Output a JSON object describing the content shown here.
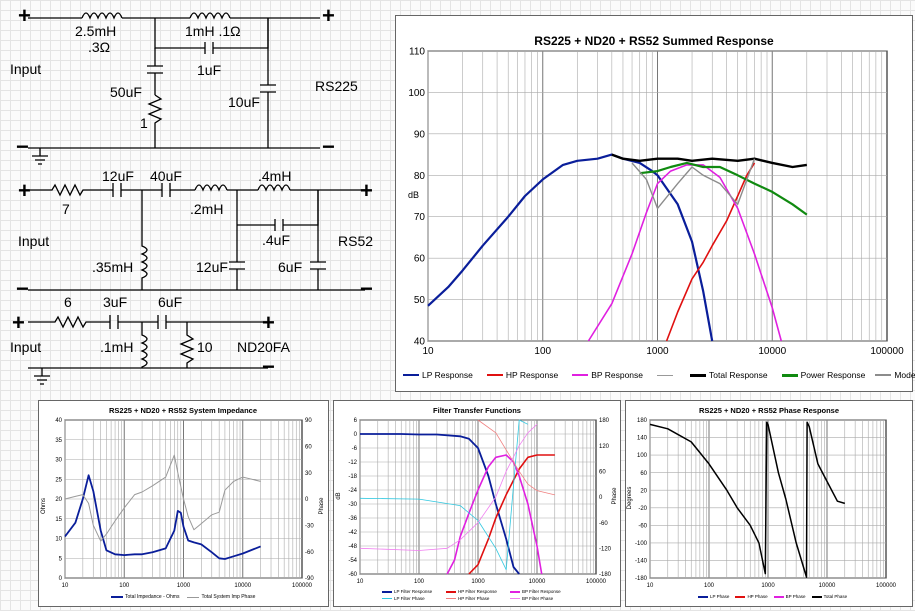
{
  "schematic": {
    "plus": "+",
    "minus": "−",
    "input_label": "Input",
    "rs225": {
      "name": "RS225",
      "l1_value": "2.5mH",
      "l1_res": ".3Ω",
      "l2_label": "1mH .1Ω",
      "c_bridge": "1uF",
      "c_shunt": "50uF",
      "r_shunt": "1",
      "c_out": "10uF"
    },
    "rs52": {
      "name": "RS52",
      "r_in": "7",
      "c1": "12uF",
      "c2": "40uF",
      "l1": ".35mH",
      "l2": ".2mH",
      "l3": ".4mH",
      "c_bridge": ".4uF",
      "c_shunt": "12uF",
      "c_out": "6uF"
    },
    "nd20": {
      "name": "ND20FA",
      "r_in": "6",
      "c1": "3uF",
      "c2": "6uF",
      "l1": ".1mH",
      "r_out": "10"
    }
  },
  "main_chart": {
    "title": "RS225 + ND20 + RS52  Summed Response",
    "ylabel": "dB",
    "y_ticks": [
      "110",
      "100",
      "90",
      "80",
      "70",
      "60",
      "50",
      "40"
    ],
    "x_ticks": [
      "10",
      "100",
      "1000",
      "10000",
      "100000"
    ],
    "legend": [
      "LP Response",
      "HP Response",
      "BP Response",
      "",
      "Total Response",
      "Power Response",
      "Modeled"
    ],
    "colors": {
      "lp": "#0a1e9a",
      "hp": "#e01010",
      "bp": "#e020e0",
      "total": "#000000",
      "power": "#108a10",
      "modeled": "#8c8c8c",
      "thin": "#909090"
    }
  },
  "impedance_chart": {
    "title": "RS225 + ND20 + RS52  System Impedance",
    "ylabel_left": "Ohms",
    "ylabel_right": "Phase",
    "y_left_ticks": [
      "40",
      "35",
      "30",
      "25",
      "20",
      "15",
      "10",
      "5",
      "0"
    ],
    "y_right_ticks": [
      "90",
      "60",
      "30",
      "0",
      "-30",
      "-60",
      "-90"
    ],
    "x_ticks": [
      "10",
      "100",
      "1000",
      "10000",
      "100000"
    ],
    "legend": [
      "Total Impedance - Ohms",
      "Total System Imp Phase"
    ]
  },
  "filter_chart": {
    "title": "Filter Transfer Functions",
    "ylabel_left": "dB",
    "ylabel_right": "Phase",
    "y_left_ticks": [
      "6",
      "0",
      "-6",
      "-12",
      "-18",
      "-24",
      "-30",
      "-36",
      "-42",
      "-48",
      "-54",
      "-60"
    ],
    "y_right_ticks": [
      "180",
      "120",
      "60",
      "0",
      "-60",
      "-120",
      "-180"
    ],
    "x_ticks": [
      "10",
      "100",
      "1000",
      "10000",
      "100000"
    ],
    "legend": [
      "LP Filter Response",
      "HP Filter Response",
      "BP Filter Response",
      "LP Filter Phase",
      "HP Filter Phase",
      "BP Filter Phase"
    ]
  },
  "phase_chart": {
    "title": "RS225 + ND20 + RS52  Phase Response",
    "ylabel": "Degrees",
    "y_ticks": [
      "180",
      "140",
      "100",
      "60",
      "20",
      "-20",
      "-60",
      "-100",
      "-140",
      "-180"
    ],
    "x_ticks": [
      "10",
      "100",
      "1000",
      "10000",
      "100000"
    ],
    "legend": [
      "LP Phase",
      "HP Phase",
      "BP Phase",
      "Total Phase"
    ]
  },
  "chart_data": [
    {
      "type": "line",
      "title": "RS225 + ND20 + RS52  Summed Response",
      "xlabel": "",
      "ylabel": "dB",
      "xscale": "log",
      "xlim": [
        10,
        100000
      ],
      "ylim": [
        40,
        110
      ],
      "series": [
        {
          "name": "LP Response",
          "x": [
            10,
            15,
            20,
            30,
            50,
            70,
            100,
            150,
            200,
            300,
            400,
            500,
            700,
            900,
            1000,
            1500,
            2000,
            2500,
            3000
          ],
          "y": [
            48.5,
            53,
            57,
            63,
            70,
            75,
            79,
            82.5,
            83.5,
            84,
            85,
            84,
            83,
            81,
            80,
            73,
            64,
            52,
            40
          ]
        },
        {
          "name": "HP Response",
          "x": [
            1200,
            1500,
            2000,
            2500,
            3000,
            4000,
            5000,
            6000,
            7000
          ],
          "y": [
            40,
            47,
            55,
            59,
            63,
            69,
            75,
            80,
            83
          ]
        },
        {
          "name": "BP Response",
          "x": [
            250,
            400,
            600,
            800,
            1000,
            1300,
            1800,
            2500,
            3500,
            5000,
            7000,
            10000,
            12000
          ],
          "y": [
            40,
            49,
            61,
            71,
            78,
            81,
            82.5,
            82.5,
            79.5,
            72,
            61,
            48,
            40
          ]
        },
        {
          "name": "Total Response",
          "x": [
            400,
            500,
            700,
            1000,
            1500,
            2000,
            3000,
            5000,
            7000,
            10000,
            15000,
            20000
          ],
          "y": [
            85,
            84,
            83.5,
            84,
            84,
            83.5,
            84,
            83.5,
            84,
            83,
            82,
            82.5
          ]
        },
        {
          "name": "Power Response",
          "x": [
            700,
            1000,
            1300,
            1800,
            2500,
            3500,
            5000,
            7000,
            10000,
            15000,
            20000
          ],
          "y": [
            80.5,
            81,
            82,
            83,
            82,
            82,
            80,
            78,
            76,
            73,
            70.5
          ]
        },
        {
          "name": "Modeled",
          "x": [
            600,
            800,
            1000,
            1500,
            2000,
            2500,
            3500,
            5000,
            7000
          ],
          "y": [
            83,
            79,
            72,
            78,
            82,
            80,
            78,
            73,
            84
          ]
        }
      ]
    },
    {
      "type": "line",
      "title": "RS225 + ND20 + RS52  System Impedance",
      "xscale": "log",
      "xlim": [
        10,
        100000
      ],
      "ylim": [
        0,
        40
      ],
      "y2lim": [
        -90,
        90
      ],
      "series": [
        {
          "name": "Total Impedance - Ohms",
          "axis": "left",
          "x": [
            10,
            15,
            20,
            25,
            30,
            40,
            50,
            70,
            100,
            150,
            200,
            300,
            500,
            700,
            800,
            900,
            1000,
            1200,
            1500,
            2000,
            3000,
            4000,
            5000,
            7000,
            10000,
            20000
          ],
          "y": [
            10.5,
            14,
            20,
            26,
            22,
            12,
            7,
            6,
            5.8,
            6,
            6,
            6.5,
            7.5,
            12,
            17,
            16.5,
            13,
            9.5,
            9,
            8.5,
            6.5,
            5,
            4.8,
            5.5,
            6.2,
            8
          ]
        },
        {
          "name": "Total System Imp Phase",
          "axis": "right",
          "x": [
            10,
            15,
            20,
            25,
            30,
            40,
            50,
            70,
            100,
            150,
            200,
            300,
            500,
            700,
            800,
            1000,
            1200,
            1500,
            2000,
            3000,
            4000,
            5000,
            7000,
            10000,
            20000
          ],
          "y": [
            0,
            3,
            5,
            -5,
            -30,
            -48,
            -40,
            -25,
            -10,
            5,
            8,
            15,
            25,
            50,
            30,
            0,
            -20,
            -35,
            -28,
            -18,
            -15,
            10,
            20,
            25,
            20
          ]
        }
      ]
    },
    {
      "type": "line",
      "title": "Filter Transfer Functions",
      "xscale": "log",
      "xlim": [
        10,
        100000
      ],
      "ylim": [
        -60,
        6
      ],
      "y2lim": [
        -180,
        180
      ],
      "series": [
        {
          "name": "LP Filter Response",
          "axis": "left",
          "x": [
            10,
            20,
            50,
            100,
            200,
            500,
            700,
            1000,
            1500,
            2000,
            3000,
            4000,
            5000
          ],
          "y": [
            0,
            0,
            0,
            -0.2,
            -0.2,
            -1,
            -2,
            -6,
            -18,
            -30,
            -45,
            -57,
            -64
          ]
        },
        {
          "name": "HP Filter Response",
          "axis": "left",
          "x": [
            700,
            1000,
            1500,
            2000,
            3000,
            5000,
            7000,
            10000,
            20000
          ],
          "y": [
            -64,
            -56,
            -45,
            -36,
            -26,
            -15,
            -10,
            -9,
            -9
          ]
        },
        {
          "name": "BP Filter Response",
          "axis": "left",
          "x": [
            300,
            400,
            500,
            700,
            1000,
            1500,
            2000,
            3000,
            4000,
            5000,
            7000,
            10000,
            12000
          ],
          "y": [
            -64,
            -54,
            -44,
            -34,
            -24,
            -14,
            -10,
            -9,
            -12,
            -18,
            -30,
            -48,
            -64
          ]
        },
        {
          "name": "LP Filter Phase",
          "axis": "right",
          "x": [
            10,
            100,
            500,
            1000,
            2000,
            3000,
            5000,
            7000
          ],
          "y": [
            -3,
            -5,
            -20,
            -55,
            -120,
            -170,
            180,
            170
          ]
        },
        {
          "name": "HP Filter Phase",
          "axis": "right",
          "x": [
            1000,
            2000,
            3000,
            5000,
            7000,
            10000,
            20000
          ],
          "y": [
            180,
            150,
            110,
            60,
            30,
            15,
            5
          ]
        },
        {
          "name": "BP Filter Phase",
          "axis": "right",
          "x": [
            10,
            100,
            300,
            500,
            1000,
            2000,
            3000,
            5000,
            7000,
            10000
          ],
          "y": [
            -120,
            -125,
            -120,
            -100,
            -60,
            0,
            60,
            120,
            150,
            170
          ]
        }
      ]
    },
    {
      "type": "line",
      "title": "RS225 + ND20 + RS52  Phase Response",
      "xscale": "log",
      "xlim": [
        10,
        100000
      ],
      "ylim": [
        -180,
        180
      ],
      "series": [
        {
          "name": "Total Phase",
          "x": [
            10,
            20,
            50,
            100,
            200,
            300,
            500,
            700,
            900,
            950,
            1000,
            1500,
            2000,
            3000,
            4500,
            4600,
            5000,
            7000,
            10000,
            15000,
            20000
          ],
          "y": [
            170,
            160,
            130,
            80,
            20,
            -20,
            -60,
            -100,
            -170,
            175,
            170,
            60,
            0,
            -100,
            -178,
            175,
            165,
            80,
            40,
            -5,
            -10
          ]
        }
      ]
    }
  ]
}
